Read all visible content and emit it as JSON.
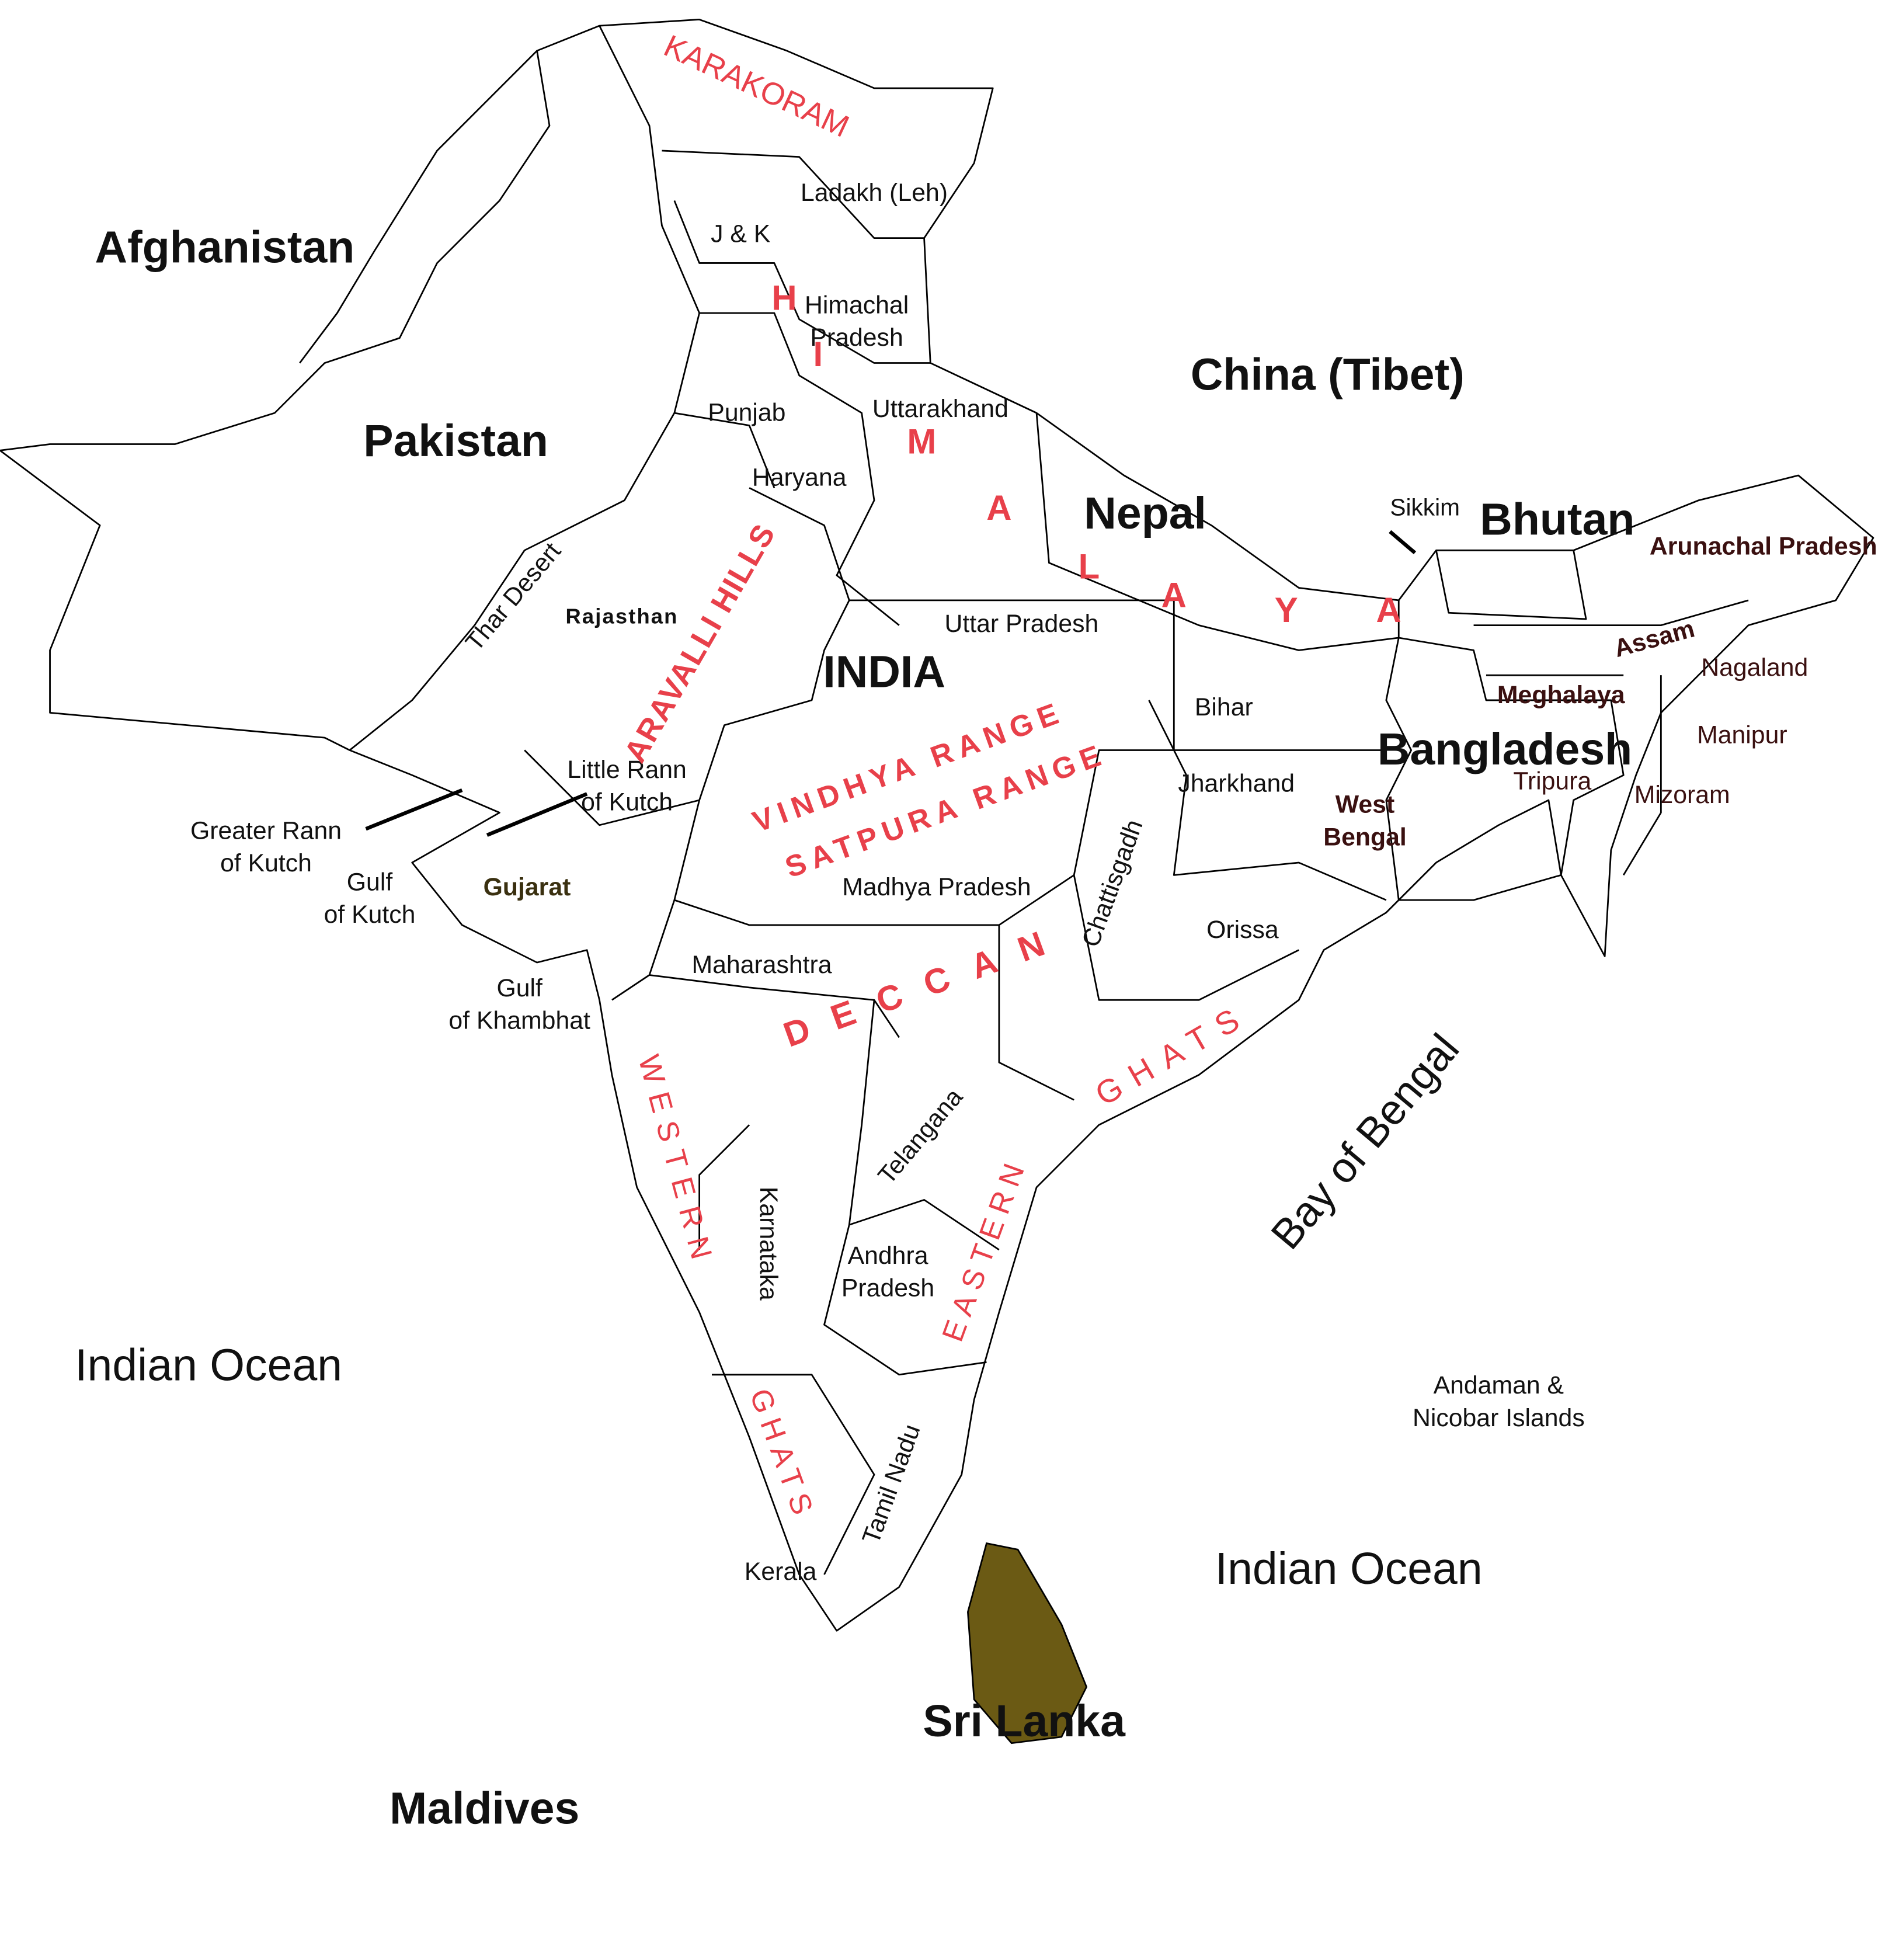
{
  "labels": {
    "countries": [
      "Afghanistan",
      "Pakistan",
      "China (Tibet)",
      "Nepal",
      "Bhutan",
      "Bangladesh",
      "INDIA",
      "Sri Lanka",
      "Maldives"
    ],
    "states": [
      "Ladakh (Leh)",
      "J & K",
      [
        "Himachal",
        "Pradesh"
      ],
      "Punjab",
      "Uttarakhand",
      "Haryana",
      "Rajasthan",
      "Uttar Pradesh",
      "Bihar",
      "Jharkhand",
      [
        "West",
        "Bengal"
      ],
      "Gujarat",
      "Madhya Pradesh",
      "Chattisgadh",
      "Orissa",
      "Maharashtra",
      "Telangana",
      "Karnataka",
      [
        "Andhra",
        "Pradesh"
      ],
      "Tamil Nadu",
      "Kerala",
      "Sikkim",
      "Arunachal Pradesh",
      "Assam",
      "Meghalaya",
      "Nagaland",
      "Manipur",
      "Tripura",
      "Mizoram"
    ],
    "water": [
      "Bay of Bengal",
      "Indian Ocean",
      "Indian Ocean",
      [
        "Greater Rann",
        "of Kutch"
      ],
      [
        "Little Rann",
        "of Kutch"
      ],
      [
        "Gulf",
        "of Kutch"
      ],
      [
        "Gulf",
        "of Khambhat"
      ],
      [
        "Andaman &",
        "Nicobar Islands"
      ],
      "Thar Desert"
    ],
    "ranges": [
      "KARAKORAM",
      "HIMALAYA",
      "ARAVALLI HILLS",
      "VINDHYA RANGE",
      "SATPURA RANGE",
      "DECCAN",
      "WESTERN",
      "GHATS",
      "EASTERN",
      "GHATS"
    ]
  }
}
